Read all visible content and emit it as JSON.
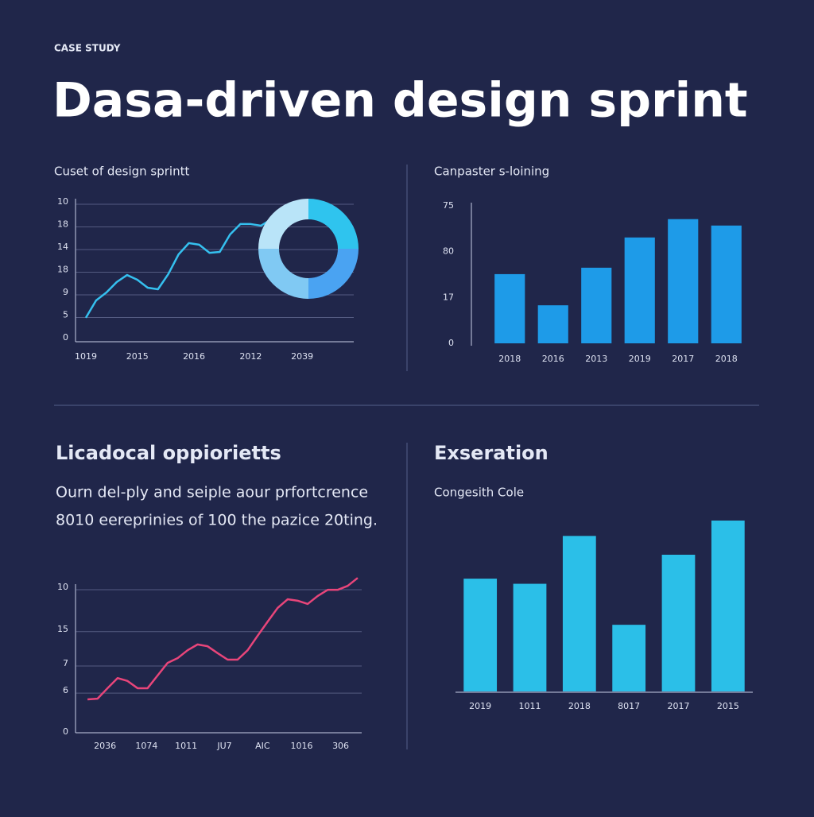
{
  "header": {
    "eyebrow": "CASE STUDY",
    "title": "Dasa-driven design sprint"
  },
  "section": {
    "heading": "Licadocal oppiorietts",
    "paragraph": [
      "Ourn del-ply and seiple aour prfortcrence",
      "8010 eereprinies of 100 the pazice 20ting."
    ]
  },
  "chart_data": [
    {
      "type": "line",
      "title": "Cuset of design sprintt",
      "color": "#35c0ef",
      "values": [
        0.88,
        1.65,
        2.0,
        2.46,
        2.77,
        2.56,
        2.21,
        2.14,
        2.81,
        3.68,
        4.18,
        4.11,
        3.75,
        3.79,
        4.56,
        5.02,
        5.02,
        4.95,
        5.23
      ],
      "xlim": [
        -1,
        26
      ],
      "xticks": [
        {
          "value": 0,
          "label": "1019"
        },
        {
          "value": 5,
          "label": "2015"
        },
        {
          "value": 10.5,
          "label": "2016"
        },
        {
          "value": 16,
          "label": "2012"
        },
        {
          "value": 21,
          "label": "2039"
        }
      ],
      "ylim": [
        0,
        6
      ],
      "yticks": [
        0,
        {
          "value": 1,
          "label": "5"
        },
        {
          "value": 2,
          "label": "9"
        },
        {
          "value": 3,
          "label": "18"
        },
        {
          "value": 4,
          "label": "14"
        },
        {
          "value": 5,
          "label": "18"
        },
        {
          "value": 6,
          "label": "10"
        }
      ],
      "grid": true
    },
    {
      "type": "pie",
      "values": [
        25,
        25,
        25,
        25
      ],
      "colors": [
        "#2fc4ee",
        "#4aa3f2",
        "#80c9f3",
        "#b9e4f8"
      ]
    },
    {
      "type": "bar",
      "title": "Canpaster s-loining",
      "color": "#1e9be8",
      "categories": [
        "2018",
        "2016",
        "2013",
        "2019",
        "2017",
        "2018"
      ],
      "values": [
        1.51,
        0.83,
        1.65,
        2.31,
        2.71,
        2.57
      ],
      "ylim": [
        0,
        3
      ],
      "yticks": [
        0,
        {
          "value": 1,
          "label": "17"
        },
        {
          "value": 2,
          "label": "80"
        },
        {
          "value": 3,
          "label": "75"
        }
      ],
      "grid": false
    },
    {
      "type": "line",
      "color": "#e8457a",
      "values": [
        0.9,
        0.92,
        1.21,
        1.49,
        1.41,
        1.21,
        1.21,
        1.56,
        1.91,
        2.04,
        2.26,
        2.42,
        2.37,
        2.18,
        2.0,
        2.0,
        2.26,
        2.66,
        3.05,
        3.43,
        3.67,
        3.63,
        3.54,
        3.76,
        3.93,
        3.93,
        4.04,
        4.26
      ],
      "xlim": [
        -1.2,
        27.4
      ],
      "xticks": [
        {
          "value": 1.75,
          "label": "2036"
        },
        {
          "value": 5.9,
          "label": "1074"
        },
        {
          "value": 9.85,
          "label": "1011"
        },
        {
          "value": 13.7,
          "label": "JU7"
        },
        {
          "value": 17.5,
          "label": "AIC"
        },
        {
          "value": 21.4,
          "label": "1016"
        },
        {
          "value": 25.3,
          "label": "306"
        }
      ],
      "ylim": [
        0,
        4
      ],
      "yticks": [
        0,
        {
          "value": 1.14,
          "label": "6"
        },
        {
          "value": 1.89,
          "label": "7"
        },
        {
          "value": 2.84,
          "label": "15"
        },
        {
          "value": 4,
          "label": "10"
        }
      ],
      "grid": true
    },
    {
      "type": "bar",
      "title": "Exseration",
      "subtitle": "Congesith Cole",
      "color": "#2bbfe8",
      "categories": [
        "2019",
        "1011",
        "2018",
        "8017",
        "2017",
        "2015"
      ],
      "values": [
        66,
        63,
        91,
        39,
        80,
        100
      ],
      "ylim": [
        0,
        100
      ],
      "grid": false
    }
  ]
}
